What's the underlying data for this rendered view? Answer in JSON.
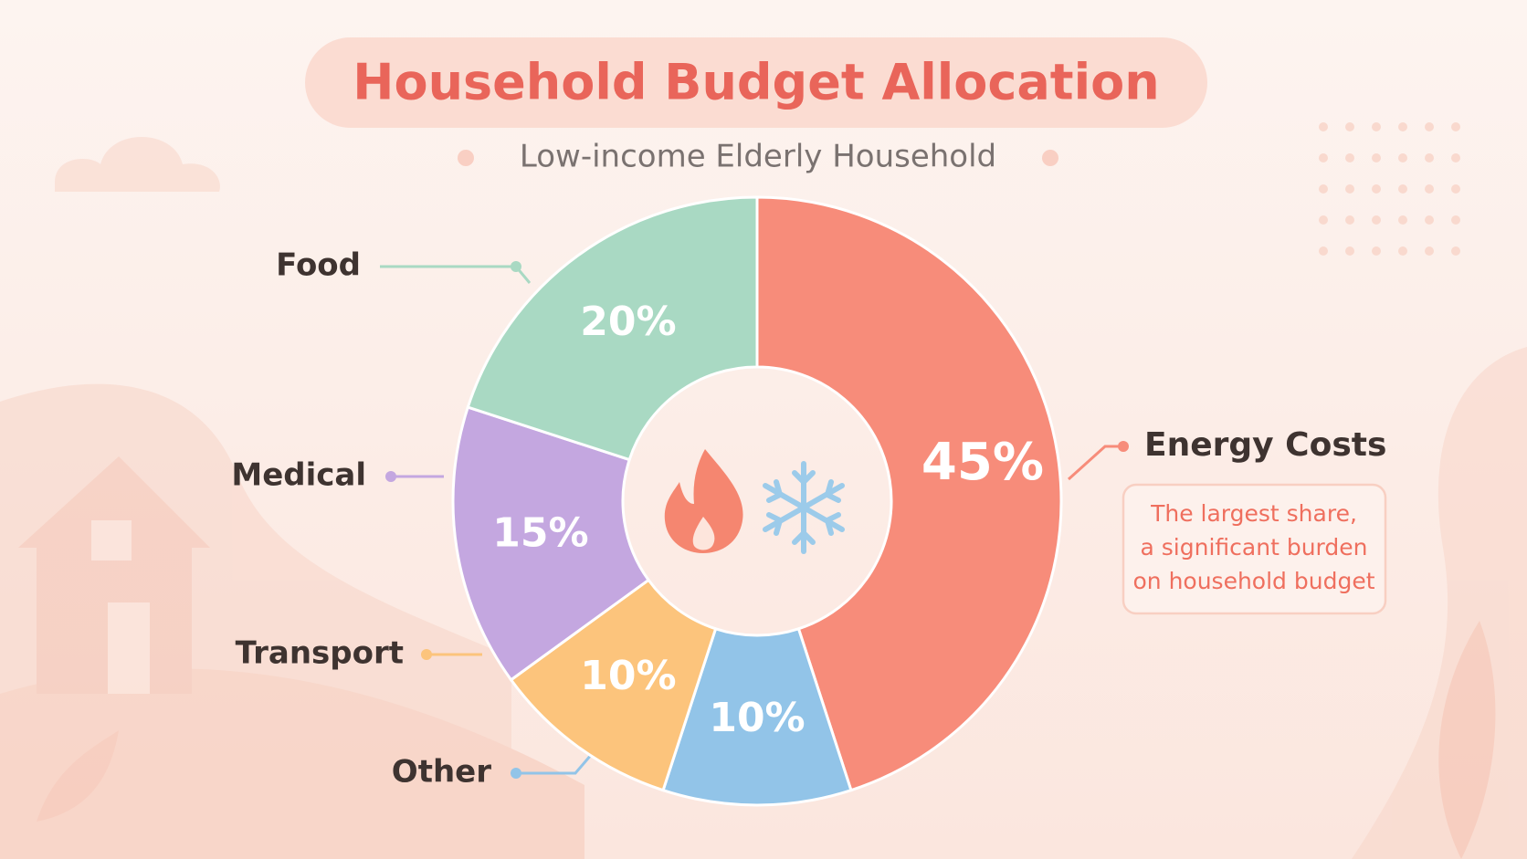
{
  "chart_data": {
    "type": "pie",
    "title": "Household Budget Allocation",
    "subtitle": "Low-income Elderly Household",
    "categories": [
      "Energy Costs",
      "Other",
      "Transport",
      "Medical",
      "Food"
    ],
    "values": [
      45,
      10,
      10,
      15,
      20
    ],
    "value_labels": [
      "45%",
      "10%",
      "10%",
      "15%",
      "20%"
    ],
    "colors": [
      "#f78c7a",
      "#92c4e8",
      "#fcc47c",
      "#c4a7e0",
      "#a9d9c3"
    ],
    "annotation": [
      "The largest share,",
      "a significant burden",
      "on household budget"
    ]
  }
}
